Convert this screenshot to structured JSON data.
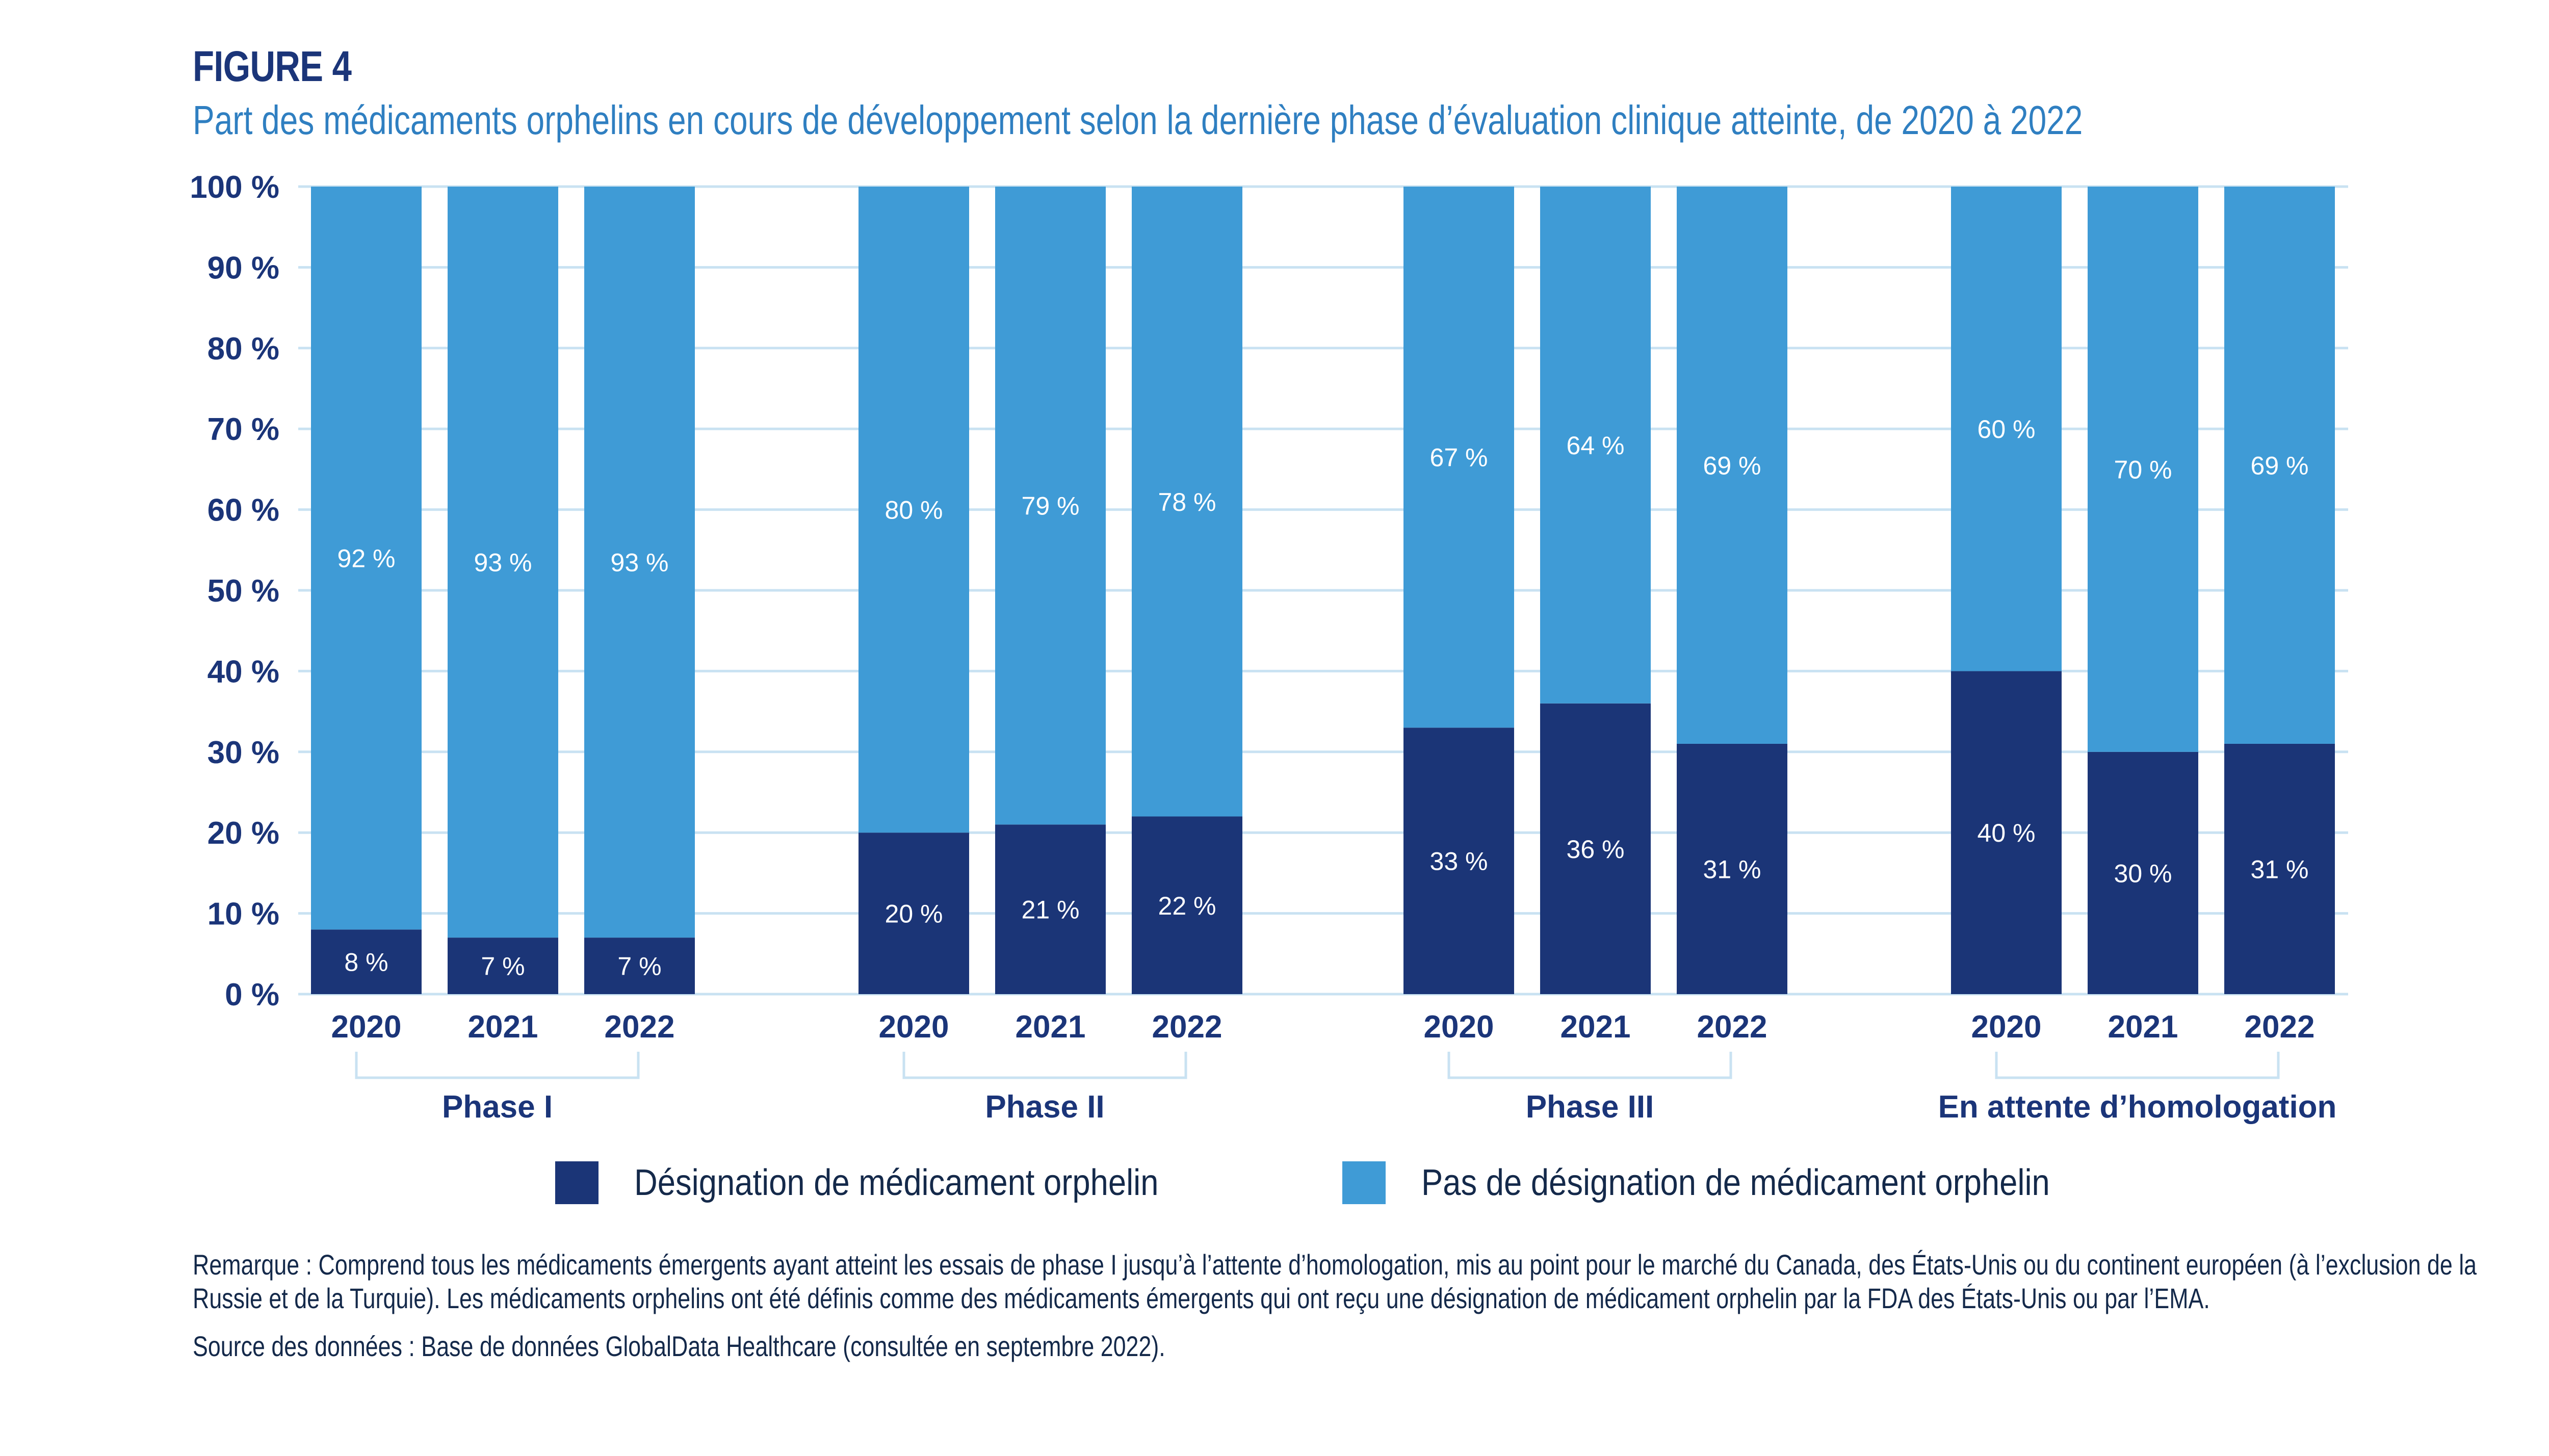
{
  "header": {
    "figure_label": "FIGURE 4",
    "title": "Part des médicaments orphelins en cours de développement selon la dernière phase d’évaluation clinique atteinte, de 2020 à 2022"
  },
  "colors": {
    "orphan": "#1b3577",
    "non_orphan": "#3f9bd6",
    "grid": "#c9e2f2",
    "text_dark": "#1b3579",
    "title_blue": "#2f7fc1"
  },
  "chart_data": {
    "type": "bar",
    "stacked": true,
    "title": "Part des médicaments orphelins en cours de développement selon la dernière phase d’évaluation clinique atteinte, de 2020 à 2022",
    "xlabel": "",
    "ylabel": "",
    "ylim": [
      0,
      100
    ],
    "yticks": [
      0,
      10,
      20,
      30,
      40,
      50,
      60,
      70,
      80,
      90,
      100
    ],
    "ytick_labels": [
      "0 %",
      "10 %",
      "20 %",
      "30 %",
      "40 %",
      "50 %",
      "60 %",
      "70 %",
      "80 %",
      "90 %",
      "100 %"
    ],
    "grid": true,
    "legend_position": "bottom",
    "groups": [
      {
        "label": "Phase I",
        "categories": [
          "2020",
          "2021",
          "2022"
        ],
        "orphan": [
          8,
          7,
          7
        ],
        "non_orphan": [
          92,
          93,
          93
        ]
      },
      {
        "label": "Phase II",
        "categories": [
          "2020",
          "2021",
          "2022"
        ],
        "orphan": [
          20,
          21,
          22
        ],
        "non_orphan": [
          80,
          79,
          78
        ]
      },
      {
        "label": "Phase III",
        "categories": [
          "2020",
          "2021",
          "2022"
        ],
        "orphan": [
          33,
          36,
          31
        ],
        "non_orphan": [
          67,
          64,
          69
        ]
      },
      {
        "label": "En attente d’homologation",
        "categories": [
          "2020",
          "2021",
          "2022"
        ],
        "orphan": [
          40,
          30,
          31
        ],
        "non_orphan": [
          60,
          70,
          69
        ]
      }
    ],
    "series": [
      {
        "name": "Désignation de médicament orphelin",
        "key": "orphan"
      },
      {
        "name": "Pas de désignation de médicament orphelin",
        "key": "non_orphan"
      }
    ],
    "value_suffix": " %"
  },
  "legend": {
    "items": [
      {
        "label": "Désignation de médicament orphelin"
      },
      {
        "label": "Pas de désignation de médicament orphelin"
      }
    ]
  },
  "notes": {
    "remark": "Remarque : Comprend tous les médicaments émergents ayant atteint les essais de phase I jusqu’à l’attente d’homologation, mis au point pour le marché du Canada, des États-Unis ou du continent européen (à l’exclusion de la Russie et de la Turquie). Les médicaments orphelins ont été définis comme des médicaments émergents qui ont reçu une désignation de médicament orphelin par la FDA des États-Unis ou par l’EMA.",
    "source": "Source des données : Base de données GlobalData Healthcare (consultée en septembre 2022)."
  }
}
